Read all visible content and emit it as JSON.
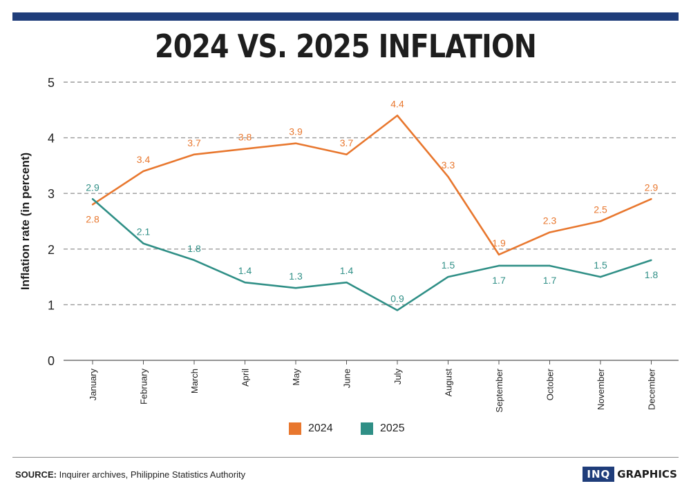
{
  "title": "2024 VS. 2025 INFLATION",
  "footer": {
    "source_label": "SOURCE:",
    "source_text": "Inquirer archives, Philippine Statistics Authority",
    "brand_box": "INQ",
    "brand_text": "GRAPHICS"
  },
  "colors": {
    "series_2024": "#e8772e",
    "series_2025": "#2f8f86",
    "bar": "#1f3d7a"
  },
  "chart_data": {
    "type": "line",
    "title": "2024 VS. 2025 INFLATION",
    "xlabel": "",
    "ylabel": "Inflation rate (in percent)",
    "ylim": [
      0,
      5
    ],
    "yticks": [
      0,
      1,
      2,
      3,
      4,
      5
    ],
    "grid": true,
    "legend": "bottom",
    "categories": [
      "January",
      "February",
      "March",
      "April",
      "May",
      "June",
      "July",
      "August",
      "September",
      "October",
      "November",
      "December"
    ],
    "series": [
      {
        "name": "2024",
        "color": "#e8772e",
        "values": [
          2.8,
          3.4,
          3.7,
          3.8,
          3.9,
          3.7,
          4.4,
          3.3,
          1.9,
          2.3,
          2.5,
          2.9
        ]
      },
      {
        "name": "2025",
        "color": "#2f8f86",
        "values": [
          2.9,
          2.1,
          1.8,
          1.4,
          1.3,
          1.4,
          0.9,
          1.5,
          1.7,
          1.7,
          1.5,
          1.8
        ]
      }
    ]
  }
}
